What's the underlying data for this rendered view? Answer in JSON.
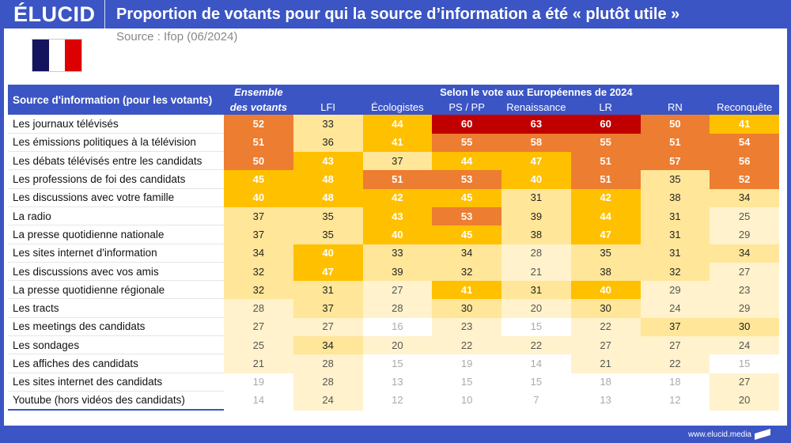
{
  "header": {
    "logo": "ÉLUCID",
    "title": "Proportion de votants pour qui la source d’information a été « plutôt utile »"
  },
  "source": "Source : Ifop (06/2024)",
  "footer": "www.elucid.media",
  "colors": {
    "frame": "#3b55c4",
    "ge60": "#c00000",
    "50-59": "#ed7d31",
    "40-49": "#ffc000",
    "30-39": "#ffe699",
    "20-29": "#fff2cc",
    "lt20": "#ffffff"
  },
  "chart_data": {
    "type": "heatmap",
    "row_header": "Source d'information (pour les votants)",
    "group_header": "Selon le vote aux Européennes de 2024",
    "total_header": [
      "Ensemble",
      "des votants"
    ],
    "columns": [
      "Ensemble des votants",
      "LFI",
      "Écologistes",
      "PS / PP",
      "Renaissance",
      "LR",
      "RN",
      "Reconquête"
    ],
    "rows": [
      {
        "label": "Les journaux télévisés",
        "values": [
          52,
          33,
          44,
          60,
          63,
          60,
          50,
          41
        ]
      },
      {
        "label": "Les émissions politiques à la télévision",
        "values": [
          51,
          36,
          41,
          55,
          58,
          55,
          51,
          54
        ]
      },
      {
        "label": "Les débats télévisés entre les candidats",
        "values": [
          50,
          43,
          37,
          44,
          47,
          51,
          57,
          56
        ]
      },
      {
        "label": "Les professions de foi des candidats",
        "values": [
          45,
          48,
          51,
          53,
          40,
          51,
          35,
          52
        ]
      },
      {
        "label": "Les discussions avec votre famille",
        "values": [
          40,
          48,
          42,
          45,
          31,
          42,
          38,
          34
        ]
      },
      {
        "label": "La radio",
        "values": [
          37,
          35,
          43,
          53,
          39,
          44,
          31,
          25
        ]
      },
      {
        "label": "La presse quotidienne nationale",
        "values": [
          37,
          35,
          40,
          45,
          38,
          47,
          31,
          29
        ]
      },
      {
        "label": "Les sites internet d'information",
        "values": [
          34,
          40,
          33,
          34,
          28,
          35,
          31,
          34
        ]
      },
      {
        "label": "Les discussions avec vos amis",
        "values": [
          32,
          47,
          39,
          32,
          21,
          38,
          32,
          27
        ]
      },
      {
        "label": "La presse quotidienne régionale",
        "values": [
          32,
          31,
          27,
          41,
          31,
          40,
          29,
          23
        ]
      },
      {
        "label": "Les tracts",
        "values": [
          28,
          37,
          28,
          30,
          20,
          30,
          24,
          29
        ]
      },
      {
        "label": "Les meetings des candidats",
        "values": [
          27,
          27,
          16,
          23,
          15,
          22,
          37,
          30
        ]
      },
      {
        "label": "Les sondages",
        "values": [
          25,
          34,
          20,
          22,
          22,
          27,
          27,
          24
        ]
      },
      {
        "label": "Les affiches des candidats",
        "values": [
          21,
          28,
          15,
          19,
          14,
          21,
          22,
          15
        ]
      },
      {
        "label": "Les sites internet des candidats",
        "values": [
          19,
          28,
          13,
          15,
          15,
          18,
          18,
          27
        ]
      },
      {
        "label": "Youtube (hors vidéos des candidats)",
        "values": [
          14,
          24,
          12,
          10,
          7,
          13,
          12,
          20
        ]
      }
    ]
  }
}
